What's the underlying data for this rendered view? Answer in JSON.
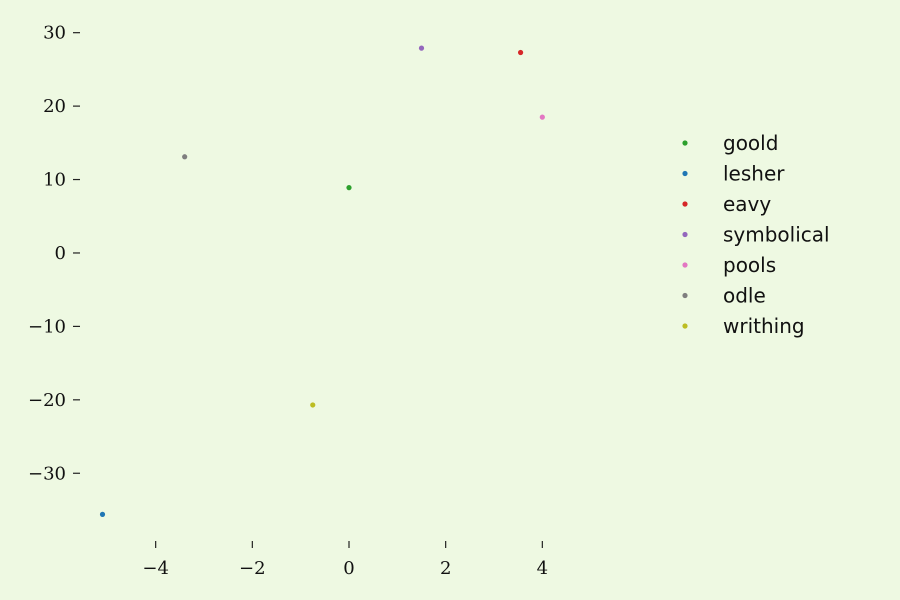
{
  "chart_data": {
    "type": "scatter",
    "title": "",
    "xlabel": "",
    "ylabel": "",
    "xlim": [
      -5.4,
      5.4
    ],
    "ylim": [
      -38,
      32
    ],
    "xticks": [
      -4,
      -2,
      0,
      2,
      4
    ],
    "yticks": [
      -30,
      -20,
      -10,
      0,
      10,
      20,
      30
    ],
    "grid": false,
    "legend_position": "right",
    "series": [
      {
        "name": "goold",
        "color": "#2ca02c",
        "points": [
          {
            "x": 0.0,
            "y": 8.9
          }
        ]
      },
      {
        "name": "lesher",
        "color": "#1f77b4",
        "points": [
          {
            "x": -5.1,
            "y": -35.6
          }
        ]
      },
      {
        "name": "eavy",
        "color": "#d62728",
        "points": [
          {
            "x": 3.55,
            "y": 27.3
          }
        ]
      },
      {
        "name": "symbolical",
        "color": "#9467bd",
        "points": [
          {
            "x": 1.5,
            "y": 27.9
          }
        ]
      },
      {
        "name": "pools",
        "color": "#e377c2",
        "points": [
          {
            "x": 4.0,
            "y": 18.5
          }
        ]
      },
      {
        "name": "odle",
        "color": "#7f7f7f",
        "points": [
          {
            "x": -3.4,
            "y": 13.1
          }
        ]
      },
      {
        "name": "writhing",
        "color": "#bcbd22",
        "points": [
          {
            "x": -0.75,
            "y": -20.7
          }
        ]
      }
    ]
  }
}
